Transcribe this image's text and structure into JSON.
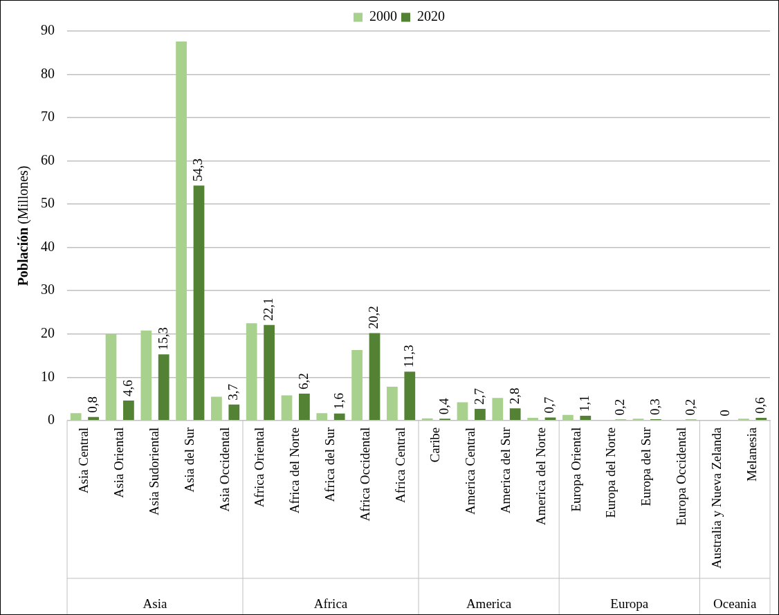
{
  "chart_data": {
    "type": "bar",
    "ylabel": "Población (Millones)",
    "categories": [
      "Asia Central",
      "Asia Oriental",
      "Asia Sudoriental",
      "Asia del Sur",
      "Asia Occidental",
      "Africa Oriental",
      "Africa del Norte",
      "Africa del Sur",
      "Africa Occidental",
      "Africa Central",
      "Caribe",
      "America Central",
      "America del Sur",
      "America del Norte",
      "Europa Oriental",
      "Europa del Norte",
      "Europa del Sur",
      "Europa Occidental",
      "Australia y Nueva Zelanda",
      "Melanesia"
    ],
    "series": [
      {
        "name": "2000",
        "color": "#a9d18e",
        "values": [
          1.7,
          20,
          20.8,
          87.6,
          5.5,
          22.5,
          5.8,
          1.7,
          16.3,
          7.8,
          0.5,
          4.2,
          5.2,
          0.6,
          1.3,
          null,
          0.4,
          null,
          0,
          0.4
        ]
      },
      {
        "name": "2020",
        "color": "#548235",
        "values": [
          0.8,
          4.6,
          15.3,
          54.3,
          3.7,
          22.1,
          6.2,
          1.6,
          20.2,
          11.3,
          0.4,
          2.7,
          2.8,
          0.7,
          1.1,
          0.2,
          0.3,
          0.2,
          0,
          0.6
        ],
        "value_labels": [
          "0,8",
          "4,6",
          "15,3",
          "54,3",
          "3,7",
          "22,1",
          "6,2",
          "1,6",
          "20,2",
          "11,3",
          "0,4",
          "2,7",
          "2,8",
          "0,7",
          "1,1",
          "0,2",
          "0,3",
          "0,2",
          "0",
          "0,6"
        ]
      }
    ],
    "annotations": [
      "Asia",
      "Africa",
      "America",
      "Europa",
      "Oceania"
    ],
    "ylim": [
      0,
      90
    ],
    "yticks": [
      0,
      10,
      20,
      30,
      40,
      50,
      60,
      70,
      80,
      90
    ],
    "grid": "y",
    "legend": "top"
  }
}
